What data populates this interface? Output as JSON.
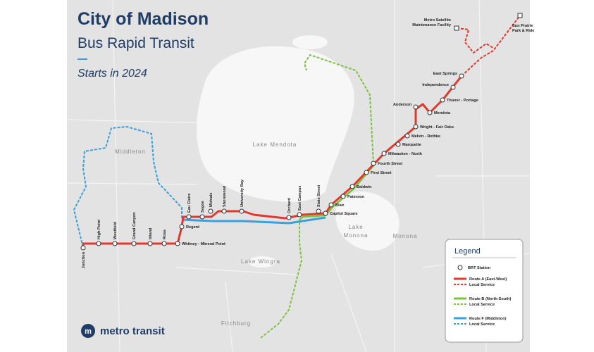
{
  "header": {
    "title": "City of Madison",
    "subtitle": "Bus Rapid Transit",
    "tagline": "Starts in 2024"
  },
  "logo": {
    "text": "metro transit"
  },
  "places": [
    "Lake Mendota",
    "Lake",
    "Monona",
    "Middleton",
    "Monona",
    "Lake Wingra",
    "Fitchburg"
  ],
  "stations": [
    "Junction",
    "High Point",
    "Westfield",
    "Grand Canyon",
    "Inland",
    "Rosa",
    "Whitney - Mineral Point",
    "Regent",
    "Eau Claire",
    "Segoe",
    "Midvale",
    "Shorewood",
    "University Bay",
    "Orchard",
    "East Campus",
    "State Street",
    "Capitol Square",
    "Blair",
    "Paterson",
    "Baldwin",
    "First Street",
    "Fourth Street",
    "Milwaukee - North",
    "Marquette",
    "Melvin - Rethke",
    "Wright - Fair Oaks",
    "Anderson",
    "Mendota",
    "Thierer - Portage",
    "Independence",
    "East Springs"
  ],
  "endpoints": {
    "sun_prairie": [
      "Sun Prairie",
      "Park & Ride"
    ],
    "maintenance": [
      "Metro Satellite",
      "Maintenance Facility"
    ]
  },
  "legend": {
    "title": "Legend",
    "station": "BRT Station",
    "routes": [
      {
        "name": "Route A (East-West)",
        "local": "Local Service"
      },
      {
        "name": "Route B (North-South)",
        "local": "Local Service"
      },
      {
        "name": "Route F (Middleton)",
        "local": "Local Service"
      }
    ]
  }
}
